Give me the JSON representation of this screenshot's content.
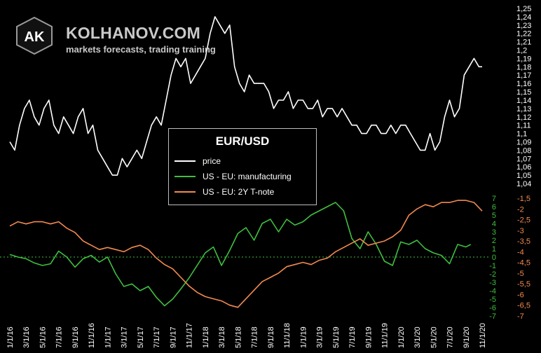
{
  "brand": {
    "logo_text": "AK",
    "name": "KOLHANOV.COM",
    "tagline": "markets forecasts, trading training"
  },
  "legend": {
    "title": "EUR/USD",
    "items": [
      {
        "label": "price",
        "color": "#ffffff"
      },
      {
        "label": "US - EU: manufacturing",
        "color": "#3fbf3f"
      },
      {
        "label": "US - EU: 2Y T-note",
        "color": "#f28a50"
      }
    ]
  },
  "chart_data": {
    "type": "line",
    "x_ticks": [
      "1/1/16",
      "3/1/16",
      "5/1/16",
      "7/1/16",
      "9/1/16",
      "11/1/16",
      "1/1/17",
      "3/1/17",
      "5/1/17",
      "7/1/17",
      "9/1/17",
      "11/1/17",
      "1/1/18",
      "3/1/18",
      "5/1/18",
      "7/1/18",
      "9/1/18",
      "11/1/18",
      "1/1/19",
      "3/1/19",
      "5/1/19",
      "7/1/19",
      "9/1/19",
      "11/1/19",
      "1/1/20",
      "3/1/20",
      "5/1/20",
      "7/1/20",
      "9/1/20",
      "11/1/20"
    ],
    "axes": {
      "price_right": {
        "ticks": [
          "1,04",
          "1,05",
          "1,06",
          "1,07",
          "1,08",
          "1,09",
          "1,1",
          "1,11",
          "1,12",
          "1,13",
          "1,14",
          "1,15",
          "1,16",
          "1,17",
          "1,18",
          "1,19",
          "1,2",
          "1,21",
          "1,22",
          "1,23",
          "1,24",
          "1,25"
        ],
        "range": [
          1.04,
          1.25
        ],
        "color": "#ffffff"
      },
      "manufacturing_left": {
        "ticks": [
          "7",
          "6",
          "5",
          "4",
          "3",
          "2",
          "1",
          "0",
          "-1",
          "-2",
          "-3",
          "-4",
          "-5",
          "-6",
          "-7"
        ],
        "range": [
          -7,
          7
        ],
        "color": "#3fbf3f"
      },
      "tnote_right": {
        "ticks": [
          "-1,5",
          "-2",
          "-2,5",
          "-3",
          "-3,5",
          "-4",
          "-4,5",
          "-5",
          "-5,5",
          "-6",
          "-6,5",
          "-7"
        ],
        "range": [
          -7,
          -1.5
        ],
        "color": "#f28a50"
      }
    },
    "zero_line": {
      "value": 0,
      "style": "dotted",
      "color": "#3fbf3f"
    },
    "series": [
      {
        "name": "price",
        "color": "#ffffff",
        "x": [
          0,
          0.3,
          0.6,
          0.9,
          1.2,
          1.5,
          1.8,
          2.1,
          2.4,
          2.7,
          3.0,
          3.3,
          3.6,
          3.9,
          4.2,
          4.5,
          4.8,
          5.1,
          5.4,
          5.7,
          6.0,
          6.3,
          6.6,
          6.9,
          7.2,
          7.5,
          7.8,
          8.1,
          8.4,
          8.7,
          9.0,
          9.3,
          9.6,
          9.9,
          10.2,
          10.5,
          10.8,
          11.1,
          11.4,
          11.7,
          12.0,
          12.3,
          12.6,
          12.9,
          13.2,
          13.5,
          13.8,
          14.1,
          14.4,
          14.7,
          15.0,
          15.3,
          15.6,
          15.9,
          16.2,
          16.5,
          16.8,
          17.1,
          17.4,
          17.7,
          18.0,
          18.3,
          18.6,
          18.9,
          19.2,
          19.5,
          19.8,
          20.1,
          20.4,
          20.7,
          21.0,
          21.3,
          21.6,
          21.9,
          22.2,
          22.5,
          22.8,
          23.1,
          23.4,
          23.7,
          24.0,
          24.3,
          24.6,
          24.9,
          25.2,
          25.5,
          25.8,
          26.1,
          26.4,
          26.7,
          27.0,
          27.3,
          27.6,
          27.9,
          28.2,
          28.5,
          28.8,
          29.0
        ],
        "values": [
          1.09,
          1.08,
          1.11,
          1.13,
          1.14,
          1.12,
          1.11,
          1.13,
          1.14,
          1.11,
          1.1,
          1.12,
          1.11,
          1.1,
          1.12,
          1.13,
          1.1,
          1.11,
          1.08,
          1.07,
          1.06,
          1.05,
          1.05,
          1.07,
          1.06,
          1.07,
          1.08,
          1.07,
          1.09,
          1.11,
          1.12,
          1.11,
          1.14,
          1.17,
          1.19,
          1.18,
          1.19,
          1.16,
          1.17,
          1.18,
          1.19,
          1.22,
          1.24,
          1.23,
          1.22,
          1.23,
          1.18,
          1.16,
          1.15,
          1.17,
          1.16,
          1.16,
          1.16,
          1.15,
          1.13,
          1.14,
          1.14,
          1.15,
          1.13,
          1.14,
          1.14,
          1.13,
          1.13,
          1.14,
          1.12,
          1.13,
          1.13,
          1.12,
          1.13,
          1.12,
          1.11,
          1.11,
          1.1,
          1.1,
          1.11,
          1.11,
          1.1,
          1.1,
          1.11,
          1.1,
          1.11,
          1.11,
          1.1,
          1.09,
          1.08,
          1.08,
          1.1,
          1.08,
          1.09,
          1.12,
          1.14,
          1.12,
          1.13,
          1.17,
          1.18,
          1.19,
          1.18,
          1.18
        ]
      },
      {
        "name": "US - EU: manufacturing",
        "color": "#3fbf3f",
        "x": [
          0,
          0.5,
          1.0,
          1.5,
          2.0,
          2.5,
          3.0,
          3.5,
          4.0,
          4.5,
          5.0,
          5.5,
          6.0,
          6.5,
          7.0,
          7.5,
          8.0,
          8.5,
          9.0,
          9.5,
          10.0,
          10.5,
          11.0,
          11.5,
          12.0,
          12.5,
          13.0,
          13.5,
          14.0,
          14.5,
          15.0,
          15.5,
          16.0,
          16.5,
          17.0,
          17.5,
          18.0,
          18.5,
          19.0,
          19.5,
          20.0,
          20.5,
          21.0,
          21.5,
          22.0,
          22.5,
          23.0,
          23.5,
          24.0,
          24.5,
          25.0,
          25.5,
          26.0,
          26.5,
          27.0,
          27.5,
          28.0,
          28.3
        ],
        "values": [
          0.3,
          0,
          -0.2,
          -0.7,
          -1.0,
          -0.8,
          0.7,
          0,
          -1.2,
          -0.2,
          0.2,
          -0.6,
          0,
          -2.0,
          -3.5,
          -3.2,
          -4.0,
          -3.5,
          -4.8,
          -5.8,
          -5.0,
          -3.8,
          -2.5,
          -1.0,
          0.5,
          1.2,
          -1.0,
          0.8,
          2.8,
          3.5,
          2.0,
          4.0,
          4.5,
          3.0,
          4.5,
          3.8,
          4.2,
          5.0,
          5.5,
          6.0,
          6.5,
          5.5,
          2.2,
          1.0,
          3.0,
          1.5,
          -0.5,
          -1.0,
          1.8,
          1.5,
          2.0,
          1.0,
          0.5,
          0.2,
          -0.8,
          1.5,
          1.2,
          1.5
        ]
      },
      {
        "name": "US - EU: 2Y T-note",
        "color": "#f28a50",
        "x": [
          0,
          0.5,
          1.0,
          1.5,
          2.0,
          2.5,
          3.0,
          3.5,
          4.0,
          4.5,
          5.0,
          5.5,
          6.0,
          6.5,
          7.0,
          7.5,
          8.0,
          8.5,
          9.0,
          9.5,
          10.0,
          10.5,
          11.0,
          11.5,
          12.0,
          12.5,
          13.0,
          13.5,
          14.0,
          14.5,
          15.0,
          15.5,
          16.0,
          16.5,
          17.0,
          17.5,
          18.0,
          18.5,
          19.0,
          19.5,
          20.0,
          20.5,
          21.0,
          21.5,
          22.0,
          22.5,
          23.0,
          23.5,
          24.0,
          24.5,
          25.0,
          25.5,
          26.0,
          26.5,
          27.0,
          27.5,
          28.0,
          28.5,
          29.0
        ],
        "values": [
          -2.8,
          -2.6,
          -2.7,
          -2.6,
          -2.6,
          -2.7,
          -2.6,
          -2.9,
          -3.1,
          -3.5,
          -3.7,
          -3.9,
          -3.8,
          -3.9,
          -4.0,
          -3.8,
          -3.7,
          -3.9,
          -4.3,
          -4.6,
          -4.8,
          -5.2,
          -5.6,
          -5.9,
          -6.1,
          -6.2,
          -6.3,
          -6.5,
          -6.6,
          -6.2,
          -5.8,
          -5.4,
          -5.2,
          -5.0,
          -4.7,
          -4.6,
          -4.5,
          -4.6,
          -4.4,
          -4.3,
          -4.0,
          -3.8,
          -3.6,
          -3.4,
          -3.7,
          -3.6,
          -3.5,
          -3.3,
          -3.0,
          -2.3,
          -2.0,
          -1.8,
          -1.9,
          -1.7,
          -1.7,
          -1.6,
          -1.6,
          -1.7,
          -2.1
        ]
      }
    ]
  }
}
